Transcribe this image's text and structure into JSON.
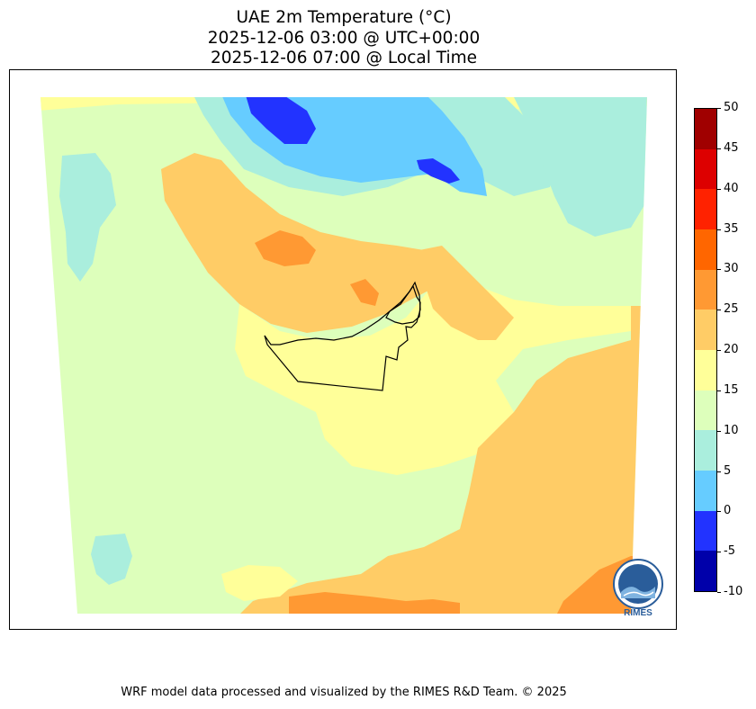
{
  "title": {
    "line1": "UAE 2m Temperature (°C)",
    "line2": "2025-12-06 03:00 @ UTC+00:00",
    "line3": "2025-12-06 07:00 @ Local Time"
  },
  "colorbar": {
    "ticks": [
      "50",
      "45",
      "40",
      "35",
      "30",
      "25",
      "20",
      "15",
      "10",
      "5",
      "0",
      "-5",
      "-10"
    ],
    "colors": [
      "#a00000",
      "#dd0000",
      "#ff2200",
      "#ff6600",
      "#ff9933",
      "#ffcc66",
      "#ffff99",
      "#ddffbb",
      "#aaeedd",
      "#66ccff",
      "#2233ff",
      "#0000aa"
    ]
  },
  "logo": {
    "text": "RIMES"
  },
  "credit": "WRF model data processed and visualized by the RIMES R&D Team. © 2025",
  "colors": {
    "band_5_10": "#aaeedd",
    "band_10_15": "#ddffbb",
    "band_15_20": "#ffff99",
    "band_20_25": "#ffcc66",
    "band_25_30": "#ff9933",
    "band_0_5": "#66ccff",
    "band_m5_0": "#2233ff"
  }
}
